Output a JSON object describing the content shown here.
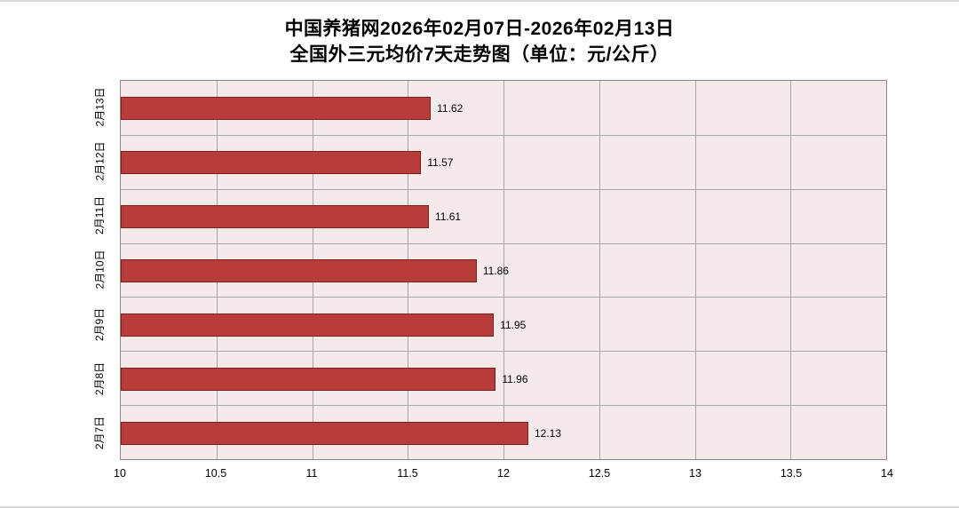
{
  "title_line1": "中国养猪网2026年02月07日-2026年02月13日",
  "title_line2": "全国外三元均价7天走势图（单位：元/公斤）",
  "chart_data": {
    "type": "bar",
    "orientation": "horizontal",
    "title": "中国养猪网2026年02月07日-2026年02月13日 全国外三元均价7天走势图（单位：元/公斤）",
    "categories": [
      "2月13日",
      "2月12日",
      "2月11日",
      "2月10日",
      "2月9日",
      "2月8日",
      "2月7日"
    ],
    "values": [
      11.62,
      11.57,
      11.61,
      11.86,
      11.95,
      11.96,
      12.13
    ],
    "value_labels": [
      "11.62",
      "11.57",
      "11.61",
      "11.86",
      "11.95",
      "11.96",
      "12.13"
    ],
    "xlim": [
      10,
      14
    ],
    "x_ticks": [
      10,
      10.5,
      11,
      11.5,
      12,
      12.5,
      13,
      13.5,
      14
    ],
    "x_tick_labels": [
      "10",
      "10.5",
      "11",
      "11.5",
      "12",
      "12.5",
      "13",
      "13.5",
      "14"
    ],
    "grid": true,
    "legend": "none",
    "colors": {
      "bar_fill": "#b83d3a",
      "bar_border": "#7e1f1e",
      "plot_bg": "#f5eaea",
      "gridline": "#a6a6a6",
      "plot_border": "#8c8c8c"
    }
  }
}
